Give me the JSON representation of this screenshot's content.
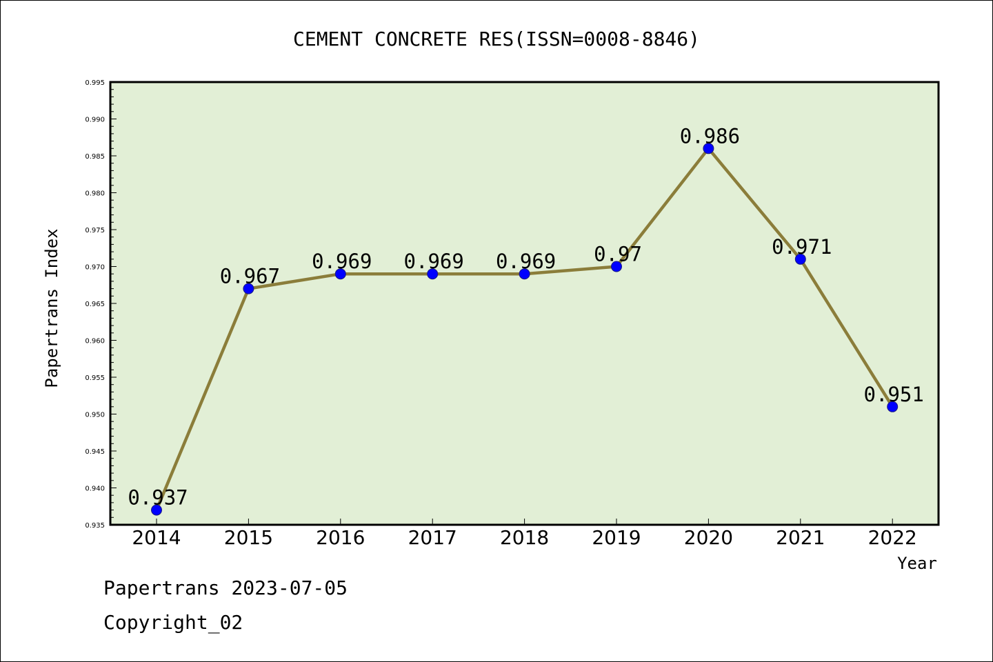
{
  "chart_data": {
    "type": "line",
    "title": "CEMENT CONCRETE RES(ISSN=0008-8846)",
    "xlabel": "Year",
    "ylabel": "Papertrans Index",
    "categories": [
      "2014",
      "2015",
      "2016",
      "2017",
      "2018",
      "2019",
      "2020",
      "2021",
      "2022"
    ],
    "values": [
      0.937,
      0.967,
      0.969,
      0.969,
      0.969,
      0.97,
      0.986,
      0.971,
      0.951
    ],
    "data_labels": [
      "0.937",
      "0.967",
      "0.969",
      "0.969",
      "0.969",
      "0.97",
      "0.986",
      "0.971",
      "0.951"
    ],
    "ylim": [
      0.935,
      0.995
    ],
    "yticks": [
      "0.935",
      "0.940",
      "0.945",
      "0.950",
      "0.955",
      "0.960",
      "0.965",
      "0.970",
      "0.975",
      "0.980",
      "0.985",
      "0.990",
      "0.995"
    ],
    "grid": false,
    "colors": {
      "plot_bg": "#e2efd6",
      "line": "#8b7d3a",
      "marker": "#0000ff"
    }
  },
  "footer": {
    "line1": "Papertrans 2023-07-05",
    "line2": "Copyright_02"
  }
}
